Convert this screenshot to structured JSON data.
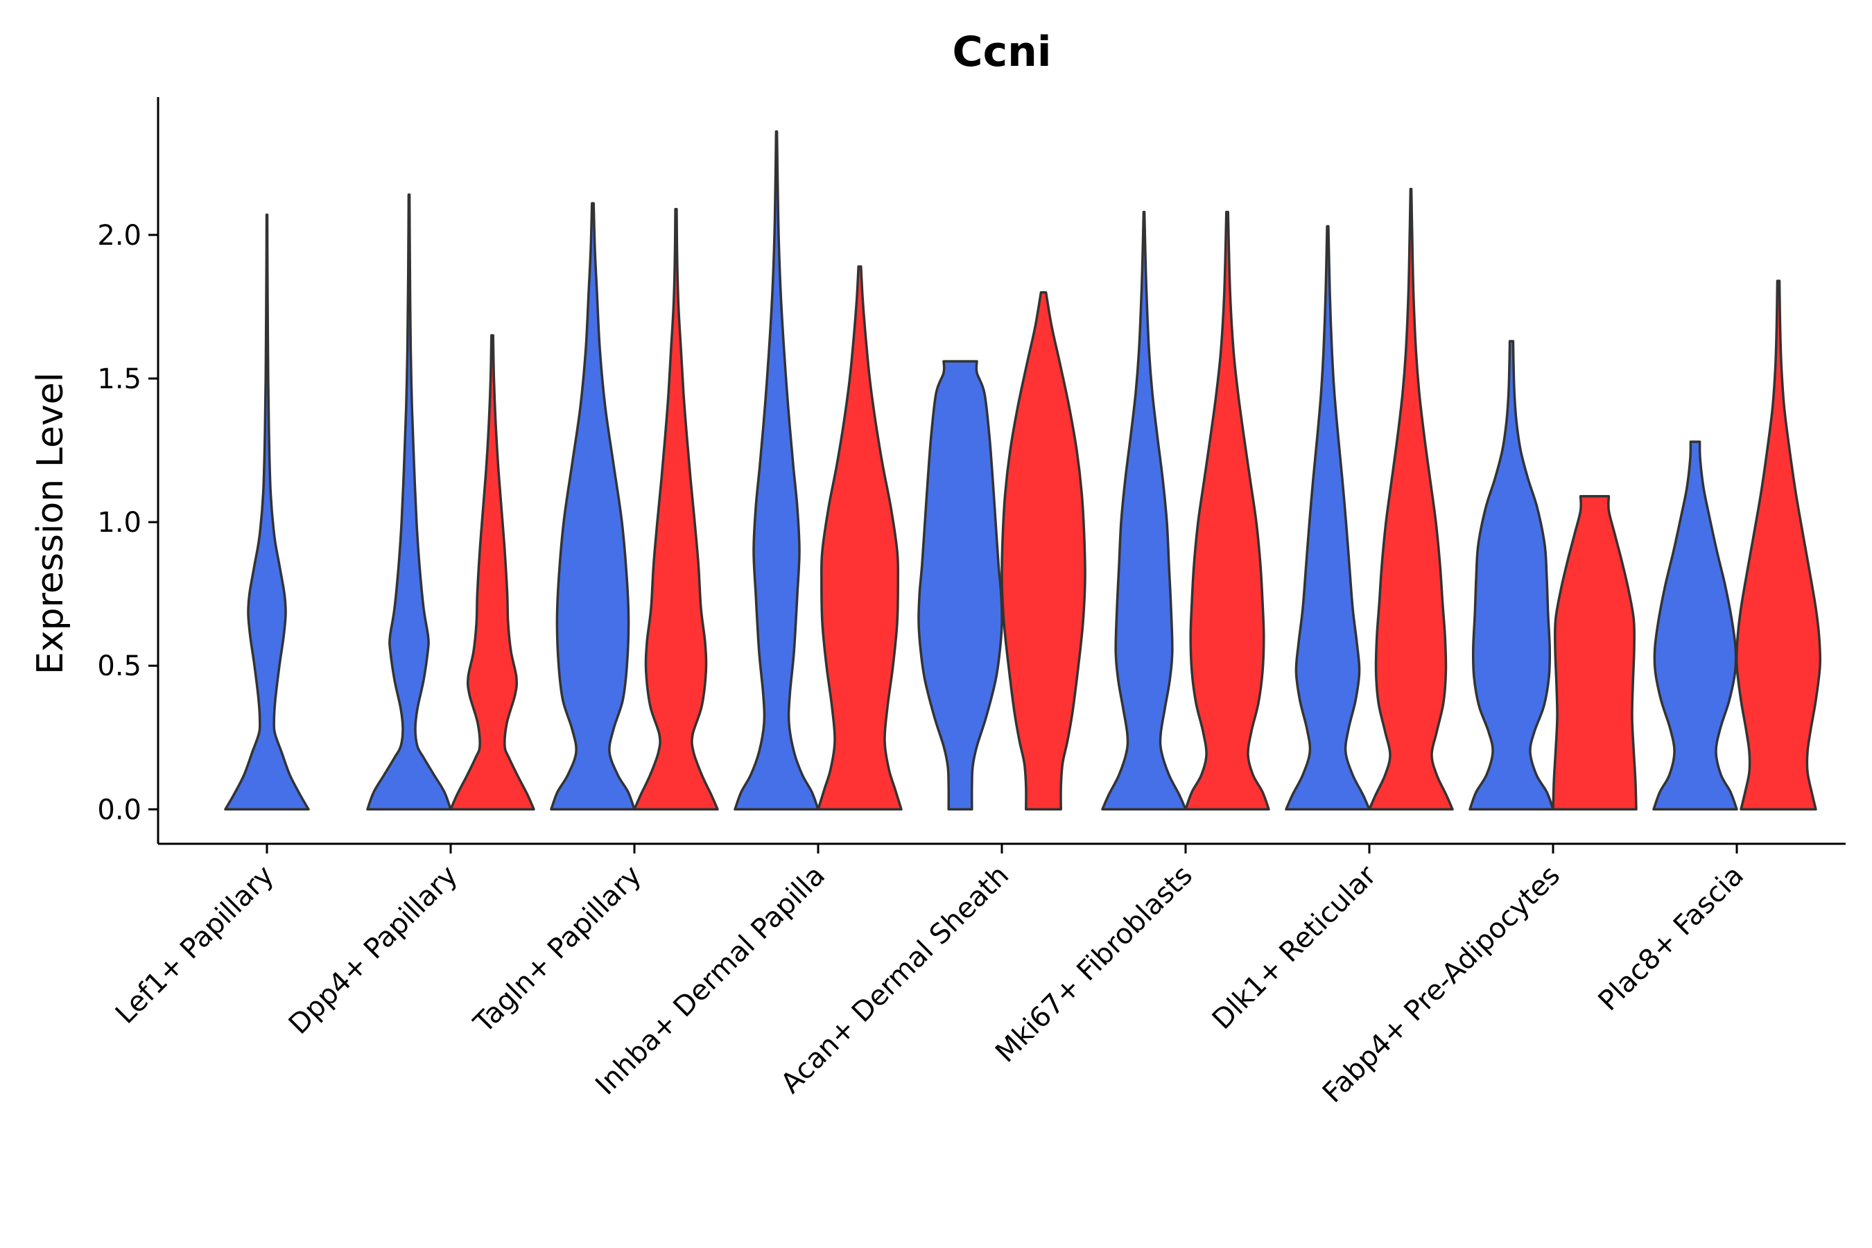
{
  "chart_data": {
    "type": "violin",
    "title": "Ccni",
    "xlabel": "",
    "ylabel": "Expression Level",
    "ylim": [
      -0.12,
      2.48
    ],
    "yticks": [
      "0.0",
      "0.5",
      "1.0",
      "1.5",
      "2.0"
    ],
    "categories": [
      "Lef1+ Papillary",
      "Dpp4+ Papillary",
      "Tagln+ Papillary",
      "Inhba+ Dermal Papilla",
      "Acan+ Dermal Sheath",
      "Mki67+ Fibroblasts",
      "Dlk1+ Reticular",
      "Fabp4+ Pre-Adipocytes",
      "Plac8+ Fascia"
    ],
    "colors": {
      "group1": "#4570e8",
      "group2": "#ff3333"
    },
    "violins": [
      {
        "category": 0,
        "group": "group1",
        "max": 2.07,
        "profile": [
          [
            0,
            1.0
          ],
          [
            0.05,
            0.8
          ],
          [
            0.12,
            0.55
          ],
          [
            0.2,
            0.35
          ],
          [
            0.26,
            0.2
          ],
          [
            0.3,
            0.17
          ],
          [
            0.38,
            0.2
          ],
          [
            0.5,
            0.3
          ],
          [
            0.6,
            0.4
          ],
          [
            0.68,
            0.45
          ],
          [
            0.75,
            0.42
          ],
          [
            0.85,
            0.3
          ],
          [
            0.95,
            0.18
          ],
          [
            1.1,
            0.09
          ],
          [
            1.3,
            0.05
          ],
          [
            1.5,
            0.03
          ],
          [
            1.7,
            0.02
          ],
          [
            1.9,
            0.012
          ],
          [
            2.07,
            0.008
          ]
        ]
      },
      {
        "category": 1,
        "group": "group1",
        "max": 2.14,
        "profile": [
          [
            0,
            1.0
          ],
          [
            0.06,
            0.85
          ],
          [
            0.12,
            0.6
          ],
          [
            0.18,
            0.35
          ],
          [
            0.22,
            0.2
          ],
          [
            0.28,
            0.15
          ],
          [
            0.35,
            0.2
          ],
          [
            0.45,
            0.35
          ],
          [
            0.55,
            0.45
          ],
          [
            0.6,
            0.46
          ],
          [
            0.7,
            0.35
          ],
          [
            0.85,
            0.25
          ],
          [
            1.0,
            0.18
          ],
          [
            1.2,
            0.12
          ],
          [
            1.4,
            0.07
          ],
          [
            1.6,
            0.04
          ],
          [
            1.8,
            0.025
          ],
          [
            2.0,
            0.015
          ],
          [
            2.14,
            0.01
          ]
        ]
      },
      {
        "category": 1,
        "group": "group2",
        "max": 1.65,
        "profile": [
          [
            0,
            1.0
          ],
          [
            0.05,
            0.85
          ],
          [
            0.12,
            0.6
          ],
          [
            0.18,
            0.4
          ],
          [
            0.22,
            0.3
          ],
          [
            0.3,
            0.35
          ],
          [
            0.4,
            0.55
          ],
          [
            0.46,
            0.58
          ],
          [
            0.55,
            0.45
          ],
          [
            0.65,
            0.38
          ],
          [
            0.75,
            0.36
          ],
          [
            0.9,
            0.3
          ],
          [
            1.05,
            0.22
          ],
          [
            1.2,
            0.14
          ],
          [
            1.35,
            0.08
          ],
          [
            1.5,
            0.04
          ],
          [
            1.65,
            0.02
          ]
        ]
      },
      {
        "category": 2,
        "group": "group1",
        "max": 2.11,
        "profile": [
          [
            0,
            1.0
          ],
          [
            0.06,
            0.85
          ],
          [
            0.12,
            0.6
          ],
          [
            0.2,
            0.4
          ],
          [
            0.28,
            0.5
          ],
          [
            0.38,
            0.72
          ],
          [
            0.5,
            0.82
          ],
          [
            0.65,
            0.86
          ],
          [
            0.8,
            0.82
          ],
          [
            1.0,
            0.7
          ],
          [
            1.2,
            0.5
          ],
          [
            1.4,
            0.3
          ],
          [
            1.6,
            0.17
          ],
          [
            1.8,
            0.1
          ],
          [
            1.95,
            0.05
          ],
          [
            2.11,
            0.02
          ]
        ]
      },
      {
        "category": 2,
        "group": "group2",
        "max": 2.09,
        "profile": [
          [
            0,
            1.0
          ],
          [
            0.05,
            0.85
          ],
          [
            0.12,
            0.62
          ],
          [
            0.2,
            0.42
          ],
          [
            0.26,
            0.4
          ],
          [
            0.36,
            0.62
          ],
          [
            0.48,
            0.72
          ],
          [
            0.58,
            0.7
          ],
          [
            0.7,
            0.6
          ],
          [
            0.85,
            0.54
          ],
          [
            1.0,
            0.45
          ],
          [
            1.15,
            0.35
          ],
          [
            1.3,
            0.26
          ],
          [
            1.45,
            0.18
          ],
          [
            1.6,
            0.12
          ],
          [
            1.75,
            0.06
          ],
          [
            1.9,
            0.03
          ],
          [
            2.09,
            0.015
          ]
        ]
      },
      {
        "category": 3,
        "group": "group1",
        "max": 2.36,
        "profile": [
          [
            0,
            1.0
          ],
          [
            0.06,
            0.85
          ],
          [
            0.12,
            0.62
          ],
          [
            0.2,
            0.42
          ],
          [
            0.3,
            0.3
          ],
          [
            0.4,
            0.32
          ],
          [
            0.55,
            0.42
          ],
          [
            0.75,
            0.5
          ],
          [
            0.9,
            0.55
          ],
          [
            1.05,
            0.5
          ],
          [
            1.2,
            0.4
          ],
          [
            1.4,
            0.28
          ],
          [
            1.6,
            0.18
          ],
          [
            1.8,
            0.1
          ],
          [
            2.0,
            0.05
          ],
          [
            2.2,
            0.025
          ],
          [
            2.36,
            0.01
          ]
        ]
      },
      {
        "category": 3,
        "group": "group2",
        "max": 1.89,
        "profile": [
          [
            0,
            1.0
          ],
          [
            0.07,
            0.85
          ],
          [
            0.14,
            0.7
          ],
          [
            0.24,
            0.6
          ],
          [
            0.36,
            0.67
          ],
          [
            0.5,
            0.8
          ],
          [
            0.65,
            0.9
          ],
          [
            0.8,
            0.92
          ],
          [
            0.9,
            0.9
          ],
          [
            1.05,
            0.75
          ],
          [
            1.2,
            0.55
          ],
          [
            1.35,
            0.38
          ],
          [
            1.5,
            0.24
          ],
          [
            1.65,
            0.14
          ],
          [
            1.78,
            0.07
          ],
          [
            1.89,
            0.03
          ]
        ]
      },
      {
        "category": 4,
        "group": "group1",
        "max": 1.56,
        "profile": [
          [
            0,
            0.28
          ],
          [
            0.08,
            0.28
          ],
          [
            0.15,
            0.3
          ],
          [
            0.22,
            0.4
          ],
          [
            0.32,
            0.62
          ],
          [
            0.45,
            0.85
          ],
          [
            0.55,
            0.95
          ],
          [
            0.65,
            1.0
          ],
          [
            0.75,
            0.98
          ],
          [
            0.85,
            0.92
          ],
          [
            1.0,
            0.85
          ],
          [
            1.15,
            0.78
          ],
          [
            1.3,
            0.7
          ],
          [
            1.45,
            0.58
          ],
          [
            1.52,
            0.4
          ],
          [
            1.56,
            0.4
          ]
        ]
      },
      {
        "category": 4,
        "group": "group2",
        "max": 1.8,
        "profile": [
          [
            0,
            0.42
          ],
          [
            0.08,
            0.42
          ],
          [
            0.16,
            0.46
          ],
          [
            0.24,
            0.58
          ],
          [
            0.34,
            0.7
          ],
          [
            0.5,
            0.84
          ],
          [
            0.65,
            0.95
          ],
          [
            0.8,
            1.0
          ],
          [
            0.95,
            0.98
          ],
          [
            1.1,
            0.92
          ],
          [
            1.25,
            0.8
          ],
          [
            1.4,
            0.62
          ],
          [
            1.55,
            0.4
          ],
          [
            1.68,
            0.2
          ],
          [
            1.8,
            0.06
          ]
        ]
      },
      {
        "category": 5,
        "group": "group1",
        "max": 2.08,
        "profile": [
          [
            0,
            1.0
          ],
          [
            0.05,
            0.85
          ],
          [
            0.12,
            0.6
          ],
          [
            0.2,
            0.42
          ],
          [
            0.26,
            0.4
          ],
          [
            0.35,
            0.5
          ],
          [
            0.45,
            0.62
          ],
          [
            0.55,
            0.68
          ],
          [
            0.7,
            0.65
          ],
          [
            0.85,
            0.6
          ],
          [
            1.0,
            0.55
          ],
          [
            1.15,
            0.45
          ],
          [
            1.3,
            0.32
          ],
          [
            1.45,
            0.2
          ],
          [
            1.6,
            0.12
          ],
          [
            1.8,
            0.06
          ],
          [
            1.95,
            0.03
          ],
          [
            2.08,
            0.01
          ]
        ]
      },
      {
        "category": 5,
        "group": "group2",
        "max": 2.08,
        "profile": [
          [
            0,
            1.0
          ],
          [
            0.06,
            0.85
          ],
          [
            0.12,
            0.62
          ],
          [
            0.19,
            0.5
          ],
          [
            0.27,
            0.58
          ],
          [
            0.37,
            0.75
          ],
          [
            0.48,
            0.85
          ],
          [
            0.6,
            0.88
          ],
          [
            0.72,
            0.85
          ],
          [
            0.85,
            0.8
          ],
          [
            1.0,
            0.7
          ],
          [
            1.15,
            0.55
          ],
          [
            1.3,
            0.4
          ],
          [
            1.45,
            0.26
          ],
          [
            1.6,
            0.15
          ],
          [
            1.8,
            0.07
          ],
          [
            2.08,
            0.02
          ]
        ]
      },
      {
        "category": 6,
        "group": "group1",
        "max": 2.03,
        "profile": [
          [
            0,
            1.0
          ],
          [
            0.05,
            0.85
          ],
          [
            0.12,
            0.6
          ],
          [
            0.2,
            0.43
          ],
          [
            0.28,
            0.5
          ],
          [
            0.38,
            0.67
          ],
          [
            0.48,
            0.76
          ],
          [
            0.58,
            0.7
          ],
          [
            0.7,
            0.6
          ],
          [
            0.85,
            0.52
          ],
          [
            1.0,
            0.44
          ],
          [
            1.15,
            0.35
          ],
          [
            1.3,
            0.25
          ],
          [
            1.45,
            0.16
          ],
          [
            1.6,
            0.1
          ],
          [
            1.8,
            0.05
          ],
          [
            2.03,
            0.015
          ]
        ]
      },
      {
        "category": 6,
        "group": "group2",
        "max": 2.16,
        "profile": [
          [
            0,
            1.0
          ],
          [
            0.05,
            0.85
          ],
          [
            0.12,
            0.62
          ],
          [
            0.19,
            0.5
          ],
          [
            0.27,
            0.62
          ],
          [
            0.37,
            0.78
          ],
          [
            0.48,
            0.84
          ],
          [
            0.6,
            0.82
          ],
          [
            0.72,
            0.76
          ],
          [
            0.85,
            0.7
          ],
          [
            1.0,
            0.6
          ],
          [
            1.15,
            0.46
          ],
          [
            1.3,
            0.32
          ],
          [
            1.45,
            0.2
          ],
          [
            1.6,
            0.12
          ],
          [
            1.8,
            0.06
          ],
          [
            2.0,
            0.03
          ],
          [
            2.16,
            0.01
          ]
        ]
      },
      {
        "category": 7,
        "group": "group1",
        "max": 1.63,
        "profile": [
          [
            0,
            1.0
          ],
          [
            0.06,
            0.85
          ],
          [
            0.12,
            0.6
          ],
          [
            0.2,
            0.45
          ],
          [
            0.27,
            0.55
          ],
          [
            0.36,
            0.78
          ],
          [
            0.46,
            0.9
          ],
          [
            0.56,
            0.92
          ],
          [
            0.68,
            0.88
          ],
          [
            0.8,
            0.85
          ],
          [
            0.92,
            0.8
          ],
          [
            1.05,
            0.62
          ],
          [
            1.15,
            0.4
          ],
          [
            1.25,
            0.22
          ],
          [
            1.35,
            0.12
          ],
          [
            1.45,
            0.07
          ],
          [
            1.55,
            0.05
          ],
          [
            1.63,
            0.04
          ]
        ]
      },
      {
        "category": 7,
        "group": "group2",
        "max": 1.09,
        "profile": [
          [
            0,
            1.0
          ],
          [
            0.1,
            0.98
          ],
          [
            0.2,
            0.94
          ],
          [
            0.32,
            0.9
          ],
          [
            0.44,
            0.92
          ],
          [
            0.56,
            0.95
          ],
          [
            0.66,
            0.94
          ],
          [
            0.76,
            0.82
          ],
          [
            0.86,
            0.66
          ],
          [
            0.96,
            0.48
          ],
          [
            1.04,
            0.34
          ],
          [
            1.09,
            0.34
          ]
        ]
      },
      {
        "category": 8,
        "group": "group1",
        "max": 1.28,
        "profile": [
          [
            0,
            1.0
          ],
          [
            0.06,
            0.85
          ],
          [
            0.12,
            0.62
          ],
          [
            0.2,
            0.5
          ],
          [
            0.28,
            0.6
          ],
          [
            0.38,
            0.82
          ],
          [
            0.48,
            0.96
          ],
          [
            0.56,
            0.97
          ],
          [
            0.66,
            0.88
          ],
          [
            0.78,
            0.72
          ],
          [
            0.9,
            0.52
          ],
          [
            1.02,
            0.34
          ],
          [
            1.12,
            0.2
          ],
          [
            1.22,
            0.12
          ],
          [
            1.28,
            0.11
          ]
        ]
      },
      {
        "category": 8,
        "group": "group2",
        "max": 1.84,
        "profile": [
          [
            0,
            0.9
          ],
          [
            0.06,
            0.8
          ],
          [
            0.13,
            0.7
          ],
          [
            0.2,
            0.7
          ],
          [
            0.28,
            0.78
          ],
          [
            0.38,
            0.9
          ],
          [
            0.5,
            1.0
          ],
          [
            0.6,
            0.98
          ],
          [
            0.7,
            0.9
          ],
          [
            0.82,
            0.76
          ],
          [
            0.95,
            0.6
          ],
          [
            1.1,
            0.42
          ],
          [
            1.25,
            0.27
          ],
          [
            1.4,
            0.14
          ],
          [
            1.55,
            0.07
          ],
          [
            1.7,
            0.04
          ],
          [
            1.84,
            0.025
          ]
        ]
      }
    ]
  }
}
